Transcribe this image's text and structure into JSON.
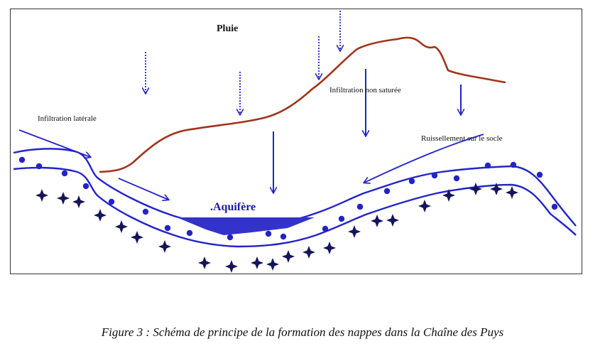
{
  "diagram": {
    "labels": {
      "pluie": "Pluie",
      "infiltration_laterale": "Infiltration latérale",
      "infiltration_non_saturee": "Infiltration non saturée",
      "ruissellement": "Ruissellement sur le socle",
      "aquifere": ".Aquifère"
    },
    "colors": {
      "terrain": "#a0341c",
      "water": "#2323c8",
      "aquifer_fill": "#3333cc",
      "star": "#14145a"
    }
  },
  "caption": "Figure 3 : Schéma de principe de la formation des nappes dans la Chaîne des Puys"
}
